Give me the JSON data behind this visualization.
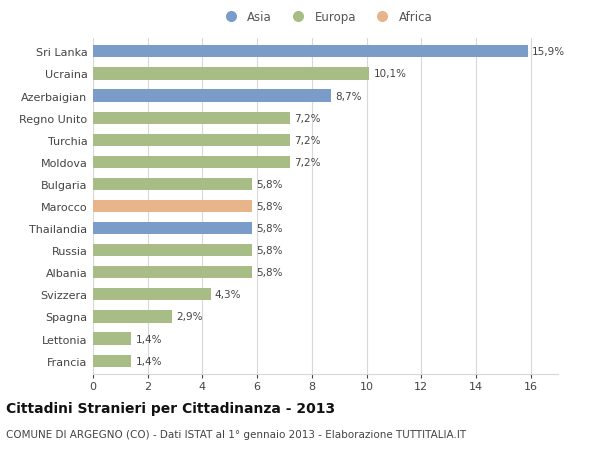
{
  "categories": [
    "Francia",
    "Lettonia",
    "Spagna",
    "Svizzera",
    "Albania",
    "Russia",
    "Thailandia",
    "Marocco",
    "Bulgaria",
    "Moldova",
    "Turchia",
    "Regno Unito",
    "Azerbaigian",
    "Ucraina",
    "Sri Lanka"
  ],
  "values": [
    1.4,
    1.4,
    2.9,
    4.3,
    5.8,
    5.8,
    5.8,
    5.8,
    5.8,
    7.2,
    7.2,
    7.2,
    8.7,
    10.1,
    15.9
  ],
  "labels": [
    "1,4%",
    "1,4%",
    "2,9%",
    "4,3%",
    "5,8%",
    "5,8%",
    "5,8%",
    "5,8%",
    "5,8%",
    "7,2%",
    "7,2%",
    "7,2%",
    "8,7%",
    "10,1%",
    "15,9%"
  ],
  "colors": [
    "#a8bc85",
    "#a8bc85",
    "#a8bc85",
    "#a8bc85",
    "#a8bc85",
    "#a8bc85",
    "#7b9bc8",
    "#e8b48a",
    "#a8bc85",
    "#a8bc85",
    "#a8bc85",
    "#a8bc85",
    "#7b9bc8",
    "#a8bc85",
    "#7b9bc8"
  ],
  "legend_labels": [
    "Asia",
    "Europa",
    "Africa"
  ],
  "legend_colors": [
    "#7b9bc8",
    "#a8bc85",
    "#e8b48a"
  ],
  "title": "Cittadini Stranieri per Cittadinanza - 2013",
  "subtitle": "COMUNE DI ARGEGNO (CO) - Dati ISTAT al 1° gennaio 2013 - Elaborazione TUTTITALIA.IT",
  "xlim": [
    0,
    17
  ],
  "xticks": [
    0,
    2,
    4,
    6,
    8,
    10,
    12,
    14,
    16
  ],
  "background_color": "#ffffff",
  "grid_color": "#d8d8d8",
  "bar_height": 0.55,
  "title_fontsize": 10,
  "subtitle_fontsize": 7.5,
  "tick_fontsize": 8,
  "value_fontsize": 7.5
}
